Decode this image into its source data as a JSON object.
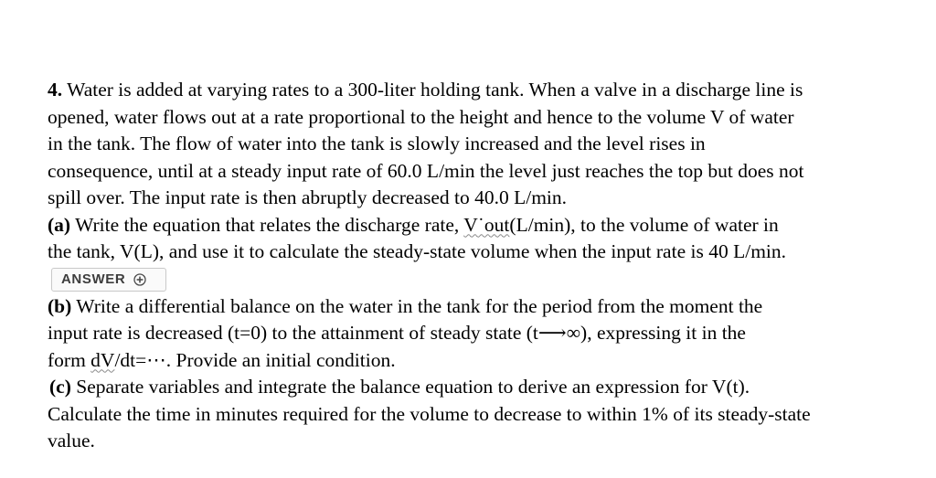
{
  "problem": {
    "number": "4.",
    "intro_lines": [
      "Water is added at varying rates to a 300-liter holding tank. When a valve in a discharge line is",
      "opened, water flows out at a rate proportional to the height and hence to the volume V of water",
      "in the tank. The flow of water into the tank is slowly increased and the level rises in",
      "consequence, until at a steady input rate of 60.0 L/min the level just reaches the top but does not",
      "spill over. The input rate is then abruptly decreased to 40.0 L/min."
    ],
    "part_a": {
      "label": "(a)",
      "line1_pre": " Write the equation that relates the discharge rate, ",
      "line1_mark": "V˙out",
      "line1_post": "(L/min), to the volume of water in",
      "line2": "the tank, V(L), and use it to calculate the steady-state volume when the input rate is 40 L/min."
    },
    "answer_button": {
      "label": "ANSWER"
    },
    "part_b": {
      "label": "(b)",
      "line1": " Write a differential balance on the water in the tank for the period from the moment the",
      "line2": "input rate is decreased (t=0) to the attainment of steady state (t⟶∞), expressing it in the",
      "line3_pre": "form ",
      "line3_mark": "dV",
      "line3_post": "/dt=⋯. Provide an initial condition."
    },
    "part_c": {
      "label": "(c)",
      "line1": " Separate variables and integrate the balance equation to derive an expression for V(t).",
      "line2": "Calculate the time in minutes required for the volume to decrease to within 1% of its steady-state",
      "line3": "value."
    }
  }
}
